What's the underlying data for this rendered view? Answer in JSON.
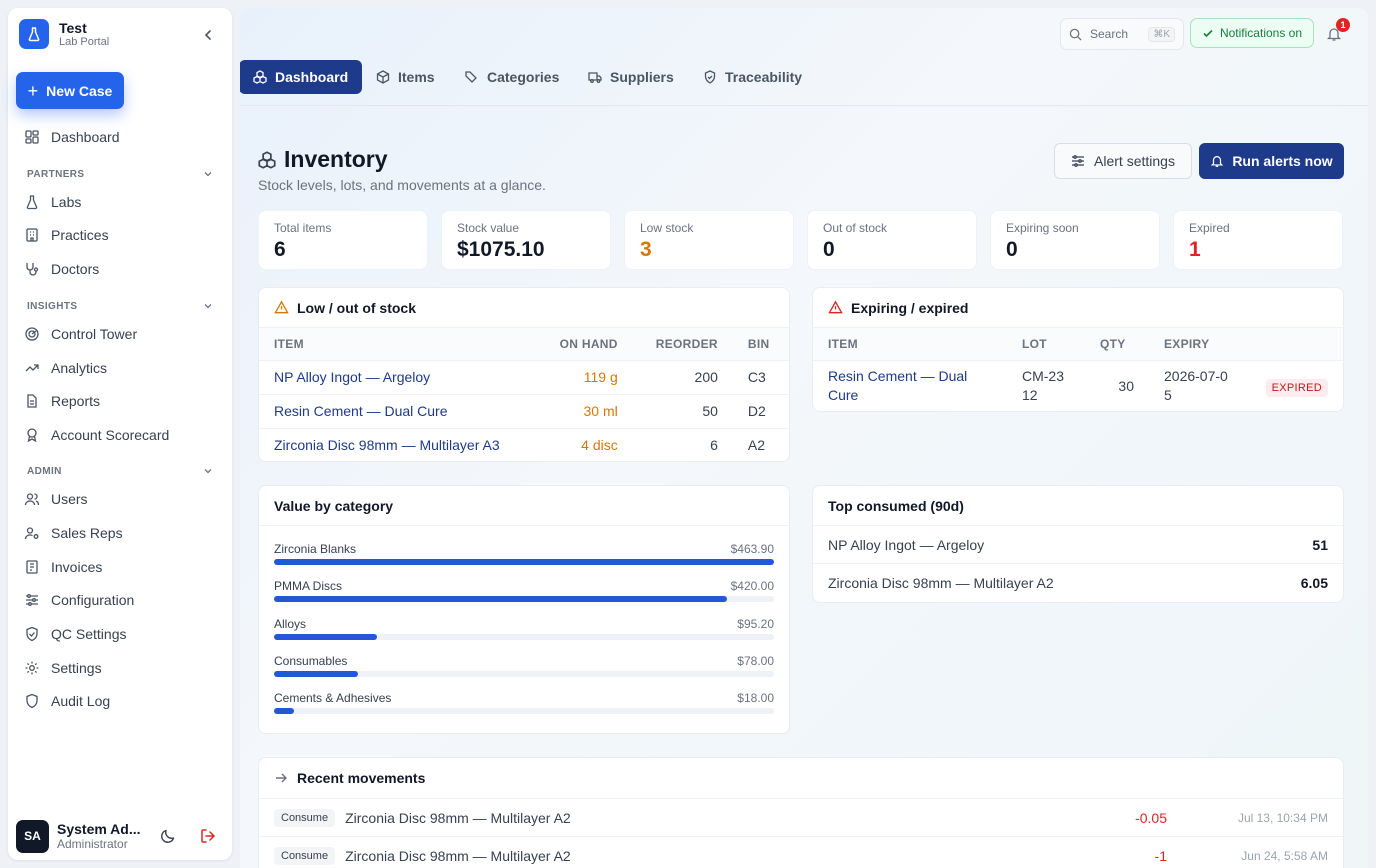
{
  "brand": {
    "title": "Test",
    "subtitle": "Lab Portal"
  },
  "new_case_label": "New Case",
  "nav": {
    "dashboard": "Dashboard",
    "partners_heading": "PARTNERS",
    "labs": "Labs",
    "practices": "Practices",
    "doctors": "Doctors",
    "insights_heading": "INSIGHTS",
    "control_tower": "Control Tower",
    "analytics": "Analytics",
    "reports": "Reports",
    "account_scorecard": "Account Scorecard",
    "admin_heading": "ADMIN",
    "users": "Users",
    "sales_reps": "Sales Reps",
    "invoices": "Invoices",
    "configuration": "Configuration",
    "qc_settings": "QC Settings",
    "settings": "Settings",
    "audit_log": "Audit Log"
  },
  "user": {
    "initials": "SA",
    "name": "System Ad...",
    "role": "Administrator"
  },
  "topbar": {
    "search_label": "Search",
    "search_shortcut": "⌘K",
    "notifications_label": "Notifications on",
    "notification_count": "1"
  },
  "tabs": {
    "dashboard": "Dashboard",
    "items": "Items",
    "categories": "Categories",
    "suppliers": "Suppliers",
    "traceability": "Traceability"
  },
  "page": {
    "title": "Inventory",
    "subtitle": "Stock levels, lots, and movements at a glance.",
    "alert_settings_label": "Alert settings",
    "run_alerts_label": "Run alerts now"
  },
  "stats": {
    "total_items": {
      "label": "Total items",
      "value": "6"
    },
    "stock_value": {
      "label": "Stock value",
      "value": "$1075.10"
    },
    "low_stock": {
      "label": "Low stock",
      "value": "3"
    },
    "out_of_stock": {
      "label": "Out of stock",
      "value": "0"
    },
    "expiring_soon": {
      "label": "Expiring soon",
      "value": "0"
    },
    "expired": {
      "label": "Expired",
      "value": "1"
    }
  },
  "colors": {
    "warning": "#d97706",
    "danger": "#dc2626",
    "primary": "#1e3a8a",
    "accent": "#2563eb"
  },
  "low_stock": {
    "title": "Low / out of stock",
    "columns": {
      "item": "ITEM",
      "on_hand": "ON HAND",
      "reorder": "REORDER",
      "bin": "BIN"
    },
    "rows": [
      {
        "item": "NP Alloy Ingot — Argeloy",
        "on_hand": "119 g",
        "reorder": "200",
        "bin": "C3"
      },
      {
        "item": "Resin Cement — Dual Cure",
        "on_hand": "30 ml",
        "reorder": "50",
        "bin": "D2"
      },
      {
        "item": "Zirconia Disc 98mm — Multilayer A3",
        "on_hand": "4 disc",
        "reorder": "6",
        "bin": "A2"
      }
    ]
  },
  "expiring": {
    "title": "Expiring / expired",
    "columns": {
      "item": "ITEM",
      "lot": "LOT",
      "qty": "QTY",
      "expiry": "EXPIRY"
    },
    "rows": [
      {
        "item": "Resin Cement — Dual Cure",
        "lot": "CM-2312",
        "qty": "30",
        "expiry": "2026-07-05",
        "status": "EXPIRED"
      }
    ]
  },
  "value_by_category": {
    "title": "Value by category",
    "rows": [
      {
        "label": "Zirconia Blanks",
        "value": "$463.90",
        "fraction": 1.0
      },
      {
        "label": "PMMA Discs",
        "value": "$420.00",
        "fraction": 0.905
      },
      {
        "label": "Alloys",
        "value": "$95.20",
        "fraction": 0.205
      },
      {
        "label": "Consumables",
        "value": "$78.00",
        "fraction": 0.168
      },
      {
        "label": "Cements & Adhesives",
        "value": "$18.00",
        "fraction": 0.039
      }
    ]
  },
  "top_consumed": {
    "title": "Top consumed (90d)",
    "rows": [
      {
        "item": "NP Alloy Ingot — Argeloy",
        "value": "51"
      },
      {
        "item": "Zirconia Disc 98mm — Multilayer A2",
        "value": "6.05"
      }
    ]
  },
  "recent_movements": {
    "title": "Recent movements",
    "rows": [
      {
        "type": "Consume",
        "item": "Zirconia Disc 98mm — Multilayer A2",
        "qty": "-0.05",
        "date": "Jul 13, 10:34 PM"
      },
      {
        "type": "Consume",
        "item": "Zirconia Disc 98mm — Multilayer A2",
        "qty": "-1",
        "date": "Jun 24, 5:58 AM"
      }
    ]
  }
}
